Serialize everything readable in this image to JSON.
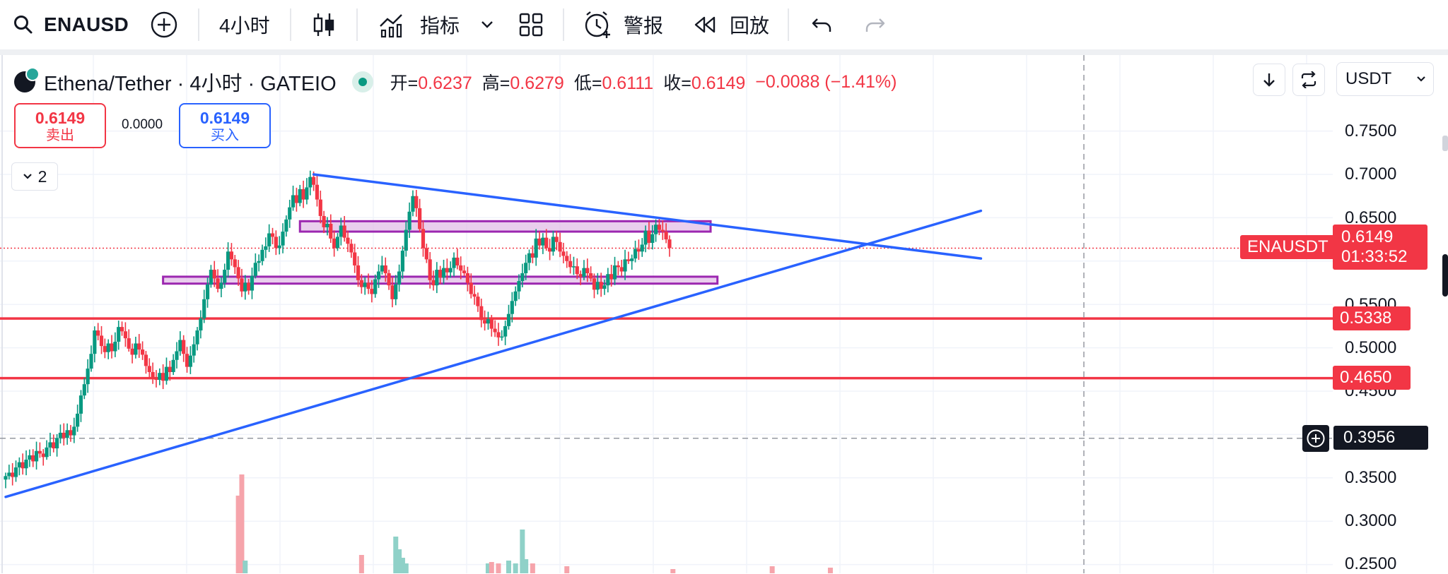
{
  "toolbar": {
    "symbol": "ENAUSD",
    "interval": "4小时",
    "indicators_label": "指标",
    "alerts_label": "警报",
    "replay_label": "回放"
  },
  "legend": {
    "title": "Ethena/Tether · 4小时 · GATEIO",
    "open_label": "开=",
    "open": "0.6237",
    "high_label": "高=",
    "high": "0.6279",
    "low_label": "低=",
    "low": "0.6111",
    "close_label": "收=",
    "close": "0.6149",
    "change": "−0.0088 (−1.41%)"
  },
  "trade": {
    "sell_price": "0.6149",
    "sell_label": "卖出",
    "spread": "0.0000",
    "buy_price": "0.6149",
    "buy_label": "买入"
  },
  "collapse_count": "2",
  "currency": "USDT",
  "price_axis": {
    "ticks": [
      "0.7500",
      "0.7000",
      "0.6500",
      "0.5500",
      "0.5000",
      "0.4500",
      "0.3500",
      "0.3000",
      "0.2500"
    ],
    "symbol_tag": "ENAUSDT",
    "current_price": "0.6149",
    "countdown": "01:33:52",
    "level_1": "0.5338",
    "level_2": "0.4650",
    "crosshair_price": "0.3956"
  },
  "colors": {
    "up": "#089981",
    "down": "#f23645",
    "trendline": "#2962ff",
    "zone_fill": "#e1bee7",
    "zone_border": "#9c27b0",
    "level": "#f23645"
  },
  "chart_data": {
    "type": "candlestick",
    "y_axis": {
      "min": 0.25,
      "max": 0.75,
      "tick_values": [
        0.25,
        0.3,
        0.35,
        0.45,
        0.5,
        0.55,
        0.65,
        0.7,
        0.75
      ]
    },
    "current_price": 0.6149,
    "horizontal_levels": [
      0.5338,
      0.465
    ],
    "crosshair_price": 0.3956,
    "resistance_zone": {
      "bar_from": 86,
      "bar_to": 206,
      "low": 0.634,
      "high": 0.646
    },
    "support_zone": {
      "bar_from": 46,
      "bar_to": 208,
      "low": 0.574,
      "high": 0.582
    },
    "trendlines": [
      {
        "name": "descending-resistance",
        "from": {
          "bar": 90,
          "price": 0.7
        },
        "to": {
          "bar": 285,
          "price": 0.603
        }
      },
      {
        "name": "ascending-support",
        "from": {
          "bar": 0,
          "price": 0.328
        },
        "to": {
          "bar": 285,
          "price": 0.658
        }
      }
    ],
    "closes": [
      0.352,
      0.356,
      0.351,
      0.362,
      0.368,
      0.361,
      0.371,
      0.376,
      0.369,
      0.381,
      0.378,
      0.374,
      0.385,
      0.391,
      0.384,
      0.396,
      0.402,
      0.396,
      0.405,
      0.399,
      0.409,
      0.424,
      0.445,
      0.458,
      0.476,
      0.493,
      0.52,
      0.514,
      0.502,
      0.495,
      0.505,
      0.496,
      0.507,
      0.524,
      0.519,
      0.511,
      0.499,
      0.492,
      0.505,
      0.498,
      0.492,
      0.479,
      0.472,
      0.466,
      0.463,
      0.471,
      0.462,
      0.478,
      0.472,
      0.486,
      0.496,
      0.509,
      0.493,
      0.478,
      0.491,
      0.504,
      0.52,
      0.534,
      0.556,
      0.573,
      0.59,
      0.58,
      0.568,
      0.575,
      0.59,
      0.611,
      0.602,
      0.593,
      0.58,
      0.565,
      0.575,
      0.566,
      0.583,
      0.598,
      0.6,
      0.613,
      0.617,
      0.632,
      0.628,
      0.615,
      0.618,
      0.634,
      0.648,
      0.662,
      0.676,
      0.667,
      0.683,
      0.671,
      0.685,
      0.697,
      0.688,
      0.671,
      0.652,
      0.639,
      0.643,
      0.626,
      0.615,
      0.628,
      0.641,
      0.627,
      0.62,
      0.61,
      0.595,
      0.578,
      0.57,
      0.575,
      0.568,
      0.562,
      0.579,
      0.588,
      0.595,
      0.586,
      0.572,
      0.556,
      0.573,
      0.588,
      0.612,
      0.636,
      0.657,
      0.675,
      0.661,
      0.637,
      0.615,
      0.602,
      0.578,
      0.572,
      0.59,
      0.581,
      0.592,
      0.587,
      0.592,
      0.604,
      0.595,
      0.589,
      0.586,
      0.575,
      0.562,
      0.559,
      0.548,
      0.532,
      0.528,
      0.533,
      0.522,
      0.518,
      0.512,
      0.513,
      0.525,
      0.539,
      0.554,
      0.565,
      0.577,
      0.586,
      0.598,
      0.609,
      0.604,
      0.626,
      0.618,
      0.627,
      0.615,
      0.611,
      0.628,
      0.622,
      0.611,
      0.606,
      0.6,
      0.593,
      0.594,
      0.585,
      0.582,
      0.592,
      0.586,
      0.58,
      0.567,
      0.576,
      0.568,
      0.572,
      0.585,
      0.579,
      0.595,
      0.593,
      0.588,
      0.602,
      0.6,
      0.603,
      0.614,
      0.611,
      0.619,
      0.635,
      0.621,
      0.631,
      0.642,
      0.636,
      0.634,
      0.625,
      0.615
    ]
  }
}
